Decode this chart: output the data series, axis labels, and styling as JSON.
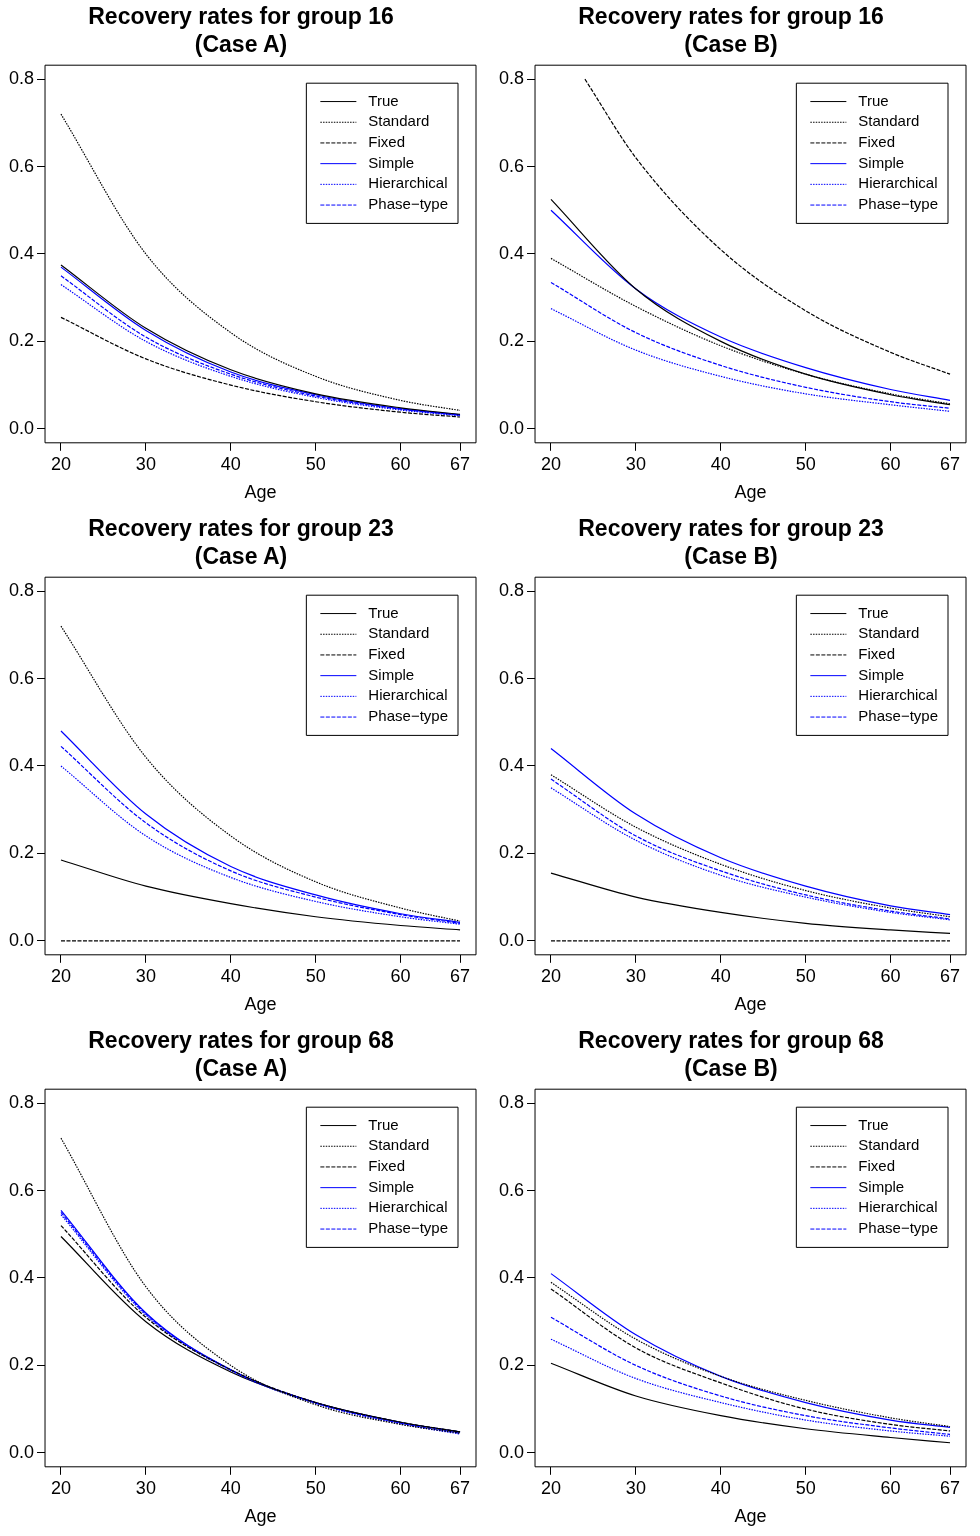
{
  "chart_data": [
    {
      "type": "line",
      "title": "Recovery rates for group 16\n(Case A)",
      "xlabel": "Age",
      "x": [
        20,
        30,
        40,
        50,
        60,
        67
      ],
      "xlim": [
        18.12,
        68.88
      ],
      "xticks": [
        20,
        30,
        40,
        50,
        60,
        67
      ],
      "ylim": [
        -0.032,
        0.832
      ],
      "yticks": [
        {
          "value": 0,
          "label": "0.0"
        },
        {
          "value": 0.2,
          "label": "0.2"
        },
        {
          "value": 0.4,
          "label": "0.4"
        },
        {
          "value": 0.6,
          "label": "0.6"
        },
        {
          "value": 0.8,
          "label": "0.8"
        }
      ],
      "legend": "top right",
      "series": [
        {
          "name": "True",
          "color": "#000000",
          "line_style": "solid",
          "values": [
            0.375,
            0.23,
            0.135,
            0.08,
            0.048,
            0.033
          ]
        },
        {
          "name": "Standard",
          "color": "#000000",
          "line_style": "dotted",
          "values": [
            0.72,
            0.4,
            0.22,
            0.12,
            0.065,
            0.042
          ]
        },
        {
          "name": "Fixed",
          "color": "#000000",
          "line_style": "dashed",
          "values": [
            0.255,
            0.16,
            0.1,
            0.062,
            0.038,
            0.027
          ]
        },
        {
          "name": "Simple",
          "color": "#0000ff",
          "line_style": "solid",
          "values": [
            0.37,
            0.225,
            0.13,
            0.078,
            0.046,
            0.032
          ]
        },
        {
          "name": "Hierarchical",
          "color": "#0000ff",
          "line_style": "dotted",
          "values": [
            0.33,
            0.2,
            0.12,
            0.072,
            0.043,
            0.03
          ]
        },
        {
          "name": "Phase−type",
          "color": "#0000ff",
          "line_style": "dashed",
          "values": [
            0.35,
            0.21,
            0.125,
            0.075,
            0.045,
            0.031
          ]
        }
      ]
    },
    {
      "type": "line",
      "title": "Recovery rates for group 16\n(Case B)",
      "xlabel": "Age",
      "x": [
        20,
        30,
        40,
        50,
        60,
        67
      ],
      "xlim": [
        18.12,
        68.88
      ],
      "xticks": [
        20,
        30,
        40,
        50,
        60,
        67
      ],
      "ylim": [
        -0.032,
        0.832
      ],
      "yticks": [
        {
          "value": 0,
          "label": "0.0"
        },
        {
          "value": 0.2,
          "label": "0.2"
        },
        {
          "value": 0.4,
          "label": "0.4"
        },
        {
          "value": 0.6,
          "label": "0.6"
        },
        {
          "value": 0.8,
          "label": "0.8"
        }
      ],
      "legend": "top right",
      "series": [
        {
          "name": "True",
          "color": "#000000",
          "line_style": "solid",
          "values": [
            0.525,
            0.32,
            0.2,
            0.125,
            0.078,
            0.055
          ]
        },
        {
          "name": "Standard",
          "color": "#000000",
          "line_style": "dotted",
          "values": [
            0.39,
            0.28,
            0.19,
            0.125,
            0.08,
            0.057
          ]
        },
        {
          "name": "Fixed",
          "color": "#000000",
          "line_style": "dashed",
          "x": [
            24,
            30,
            40,
            50,
            60,
            67
          ],
          "values": [
            0.8,
            0.62,
            0.41,
            0.27,
            0.175,
            0.125
          ]
        },
        {
          "name": "Simple",
          "color": "#0000ff",
          "line_style": "solid",
          "values": [
            0.5,
            0.32,
            0.21,
            0.14,
            0.09,
            0.065
          ]
        },
        {
          "name": "Hierarchical",
          "color": "#0000ff",
          "line_style": "dotted",
          "values": [
            0.275,
            0.18,
            0.12,
            0.08,
            0.055,
            0.04
          ]
        },
        {
          "name": "Phase−type",
          "color": "#0000ff",
          "line_style": "dashed",
          "values": [
            0.335,
            0.22,
            0.145,
            0.095,
            0.062,
            0.047
          ]
        }
      ]
    },
    {
      "type": "line",
      "title": "Recovery rates for group 23\n(Case A)",
      "xlabel": "Age",
      "x": [
        20,
        30,
        40,
        50,
        60,
        67
      ],
      "xlim": [
        18.12,
        68.88
      ],
      "xticks": [
        20,
        30,
        40,
        50,
        60,
        67
      ],
      "ylim": [
        -0.032,
        0.832
      ],
      "yticks": [
        {
          "value": 0,
          "label": "0.0"
        },
        {
          "value": 0.2,
          "label": "0.2"
        },
        {
          "value": 0.4,
          "label": "0.4"
        },
        {
          "value": 0.6,
          "label": "0.6"
        },
        {
          "value": 0.8,
          "label": "0.8"
        }
      ],
      "legend": "top right",
      "series": [
        {
          "name": "True",
          "color": "#000000",
          "line_style": "solid",
          "values": [
            0.185,
            0.125,
            0.085,
            0.055,
            0.035,
            0.025
          ]
        },
        {
          "name": "Standard",
          "color": "#000000",
          "line_style": "dotted",
          "values": [
            0.72,
            0.42,
            0.24,
            0.135,
            0.075,
            0.045
          ]
        },
        {
          "name": "Fixed",
          "color": "#000000",
          "line_style": "dashed",
          "values": [
            0,
            0,
            0,
            0,
            0,
            0
          ]
        },
        {
          "name": "Simple",
          "color": "#0000ff",
          "line_style": "solid",
          "values": [
            0.48,
            0.29,
            0.17,
            0.105,
            0.062,
            0.042
          ]
        },
        {
          "name": "Hierarchical",
          "color": "#0000ff",
          "line_style": "dotted",
          "values": [
            0.4,
            0.24,
            0.145,
            0.09,
            0.055,
            0.038
          ]
        },
        {
          "name": "Phase−type",
          "color": "#0000ff",
          "line_style": "dashed",
          "values": [
            0.445,
            0.27,
            0.16,
            0.1,
            0.06,
            0.04
          ]
        }
      ]
    },
    {
      "type": "line",
      "title": "Recovery rates for group 23\n(Case B)",
      "xlabel": "Age",
      "x": [
        20,
        30,
        40,
        50,
        60,
        67
      ],
      "xlim": [
        18.12,
        68.88
      ],
      "xticks": [
        20,
        30,
        40,
        50,
        60,
        67
      ],
      "ylim": [
        -0.032,
        0.832
      ],
      "yticks": [
        {
          "value": 0,
          "label": "0.0"
        },
        {
          "value": 0.2,
          "label": "0.2"
        },
        {
          "value": 0.4,
          "label": "0.4"
        },
        {
          "value": 0.6,
          "label": "0.6"
        },
        {
          "value": 0.8,
          "label": "0.8"
        }
      ],
      "legend": "top right",
      "series": [
        {
          "name": "True",
          "color": "#000000",
          "line_style": "solid",
          "values": [
            0.155,
            0.1,
            0.065,
            0.04,
            0.025,
            0.017
          ]
        },
        {
          "name": "Standard",
          "color": "#000000",
          "line_style": "dotted",
          "values": [
            0.38,
            0.26,
            0.175,
            0.115,
            0.075,
            0.055
          ]
        },
        {
          "name": "Fixed",
          "color": "#000000",
          "line_style": "dashed",
          "values": [
            0,
            0,
            0,
            0,
            0,
            0
          ]
        },
        {
          "name": "Simple",
          "color": "#0000ff",
          "line_style": "solid",
          "values": [
            0.44,
            0.29,
            0.19,
            0.125,
            0.08,
            0.06
          ]
        },
        {
          "name": "Hierarchical",
          "color": "#0000ff",
          "line_style": "dotted",
          "values": [
            0.35,
            0.23,
            0.15,
            0.1,
            0.065,
            0.048
          ]
        },
        {
          "name": "Phase−type",
          "color": "#0000ff",
          "line_style": "dashed",
          "values": [
            0.37,
            0.24,
            0.16,
            0.105,
            0.068,
            0.05
          ]
        }
      ]
    },
    {
      "type": "line",
      "title": "Recovery rates for group 68\n(Case A)",
      "xlabel": "Age",
      "x": [
        20,
        30,
        40,
        50,
        60,
        67
      ],
      "xlim": [
        18.12,
        68.88
      ],
      "xticks": [
        20,
        30,
        40,
        50,
        60,
        67
      ],
      "ylim": [
        -0.032,
        0.832
      ],
      "yticks": [
        {
          "value": 0,
          "label": "0.0"
        },
        {
          "value": 0.2,
          "label": "0.2"
        },
        {
          "value": 0.4,
          "label": "0.4"
        },
        {
          "value": 0.6,
          "label": "0.6"
        },
        {
          "value": 0.8,
          "label": "0.8"
        }
      ],
      "legend": "top right",
      "series": [
        {
          "name": "True",
          "color": "#000000",
          "line_style": "solid",
          "values": [
            0.495,
            0.3,
            0.185,
            0.115,
            0.07,
            0.048
          ]
        },
        {
          "name": "Standard",
          "color": "#000000",
          "line_style": "dotted",
          "values": [
            0.72,
            0.38,
            0.2,
            0.11,
            0.065,
            0.045
          ]
        },
        {
          "name": "Fixed",
          "color": "#000000",
          "line_style": "dashed",
          "values": [
            0.52,
            0.31,
            0.19,
            0.115,
            0.07,
            0.048
          ]
        },
        {
          "name": "Simple",
          "color": "#0000ff",
          "line_style": "solid",
          "values": [
            0.555,
            0.32,
            0.19,
            0.115,
            0.07,
            0.048
          ]
        },
        {
          "name": "Hierarchical",
          "color": "#0000ff",
          "line_style": "dotted",
          "values": [
            0.545,
            0.315,
            0.188,
            0.113,
            0.066,
            0.043
          ]
        },
        {
          "name": "Phase−type",
          "color": "#0000ff",
          "line_style": "dashed",
          "values": [
            0.55,
            0.318,
            0.19,
            0.114,
            0.068,
            0.045
          ]
        }
      ]
    },
    {
      "type": "line",
      "title": "Recovery rates for group 68\n(Case B)",
      "xlabel": "Age",
      "x": [
        20,
        30,
        40,
        50,
        60,
        67
      ],
      "xlim": [
        18.12,
        68.88
      ],
      "xticks": [
        20,
        30,
        40,
        50,
        60,
        67
      ],
      "ylim": [
        -0.032,
        0.832
      ],
      "yticks": [
        {
          "value": 0,
          "label": "0.0"
        },
        {
          "value": 0.2,
          "label": "0.2"
        },
        {
          "value": 0.4,
          "label": "0.4"
        },
        {
          "value": 0.6,
          "label": "0.6"
        },
        {
          "value": 0.8,
          "label": "0.8"
        }
      ],
      "legend": "top right",
      "series": [
        {
          "name": "True",
          "color": "#000000",
          "line_style": "solid",
          "values": [
            0.205,
            0.13,
            0.085,
            0.055,
            0.035,
            0.023
          ]
        },
        {
          "name": "Standard",
          "color": "#000000",
          "line_style": "dotted",
          "values": [
            0.39,
            0.26,
            0.175,
            0.12,
            0.08,
            0.06
          ]
        },
        {
          "name": "Fixed",
          "color": "#000000",
          "line_style": "dashed",
          "values": [
            0.375,
            0.24,
            0.16,
            0.1,
            0.065,
            0.05
          ]
        },
        {
          "name": "Simple",
          "color": "#0000ff",
          "line_style": "solid",
          "values": [
            0.41,
            0.27,
            0.175,
            0.115,
            0.075,
            0.058
          ]
        },
        {
          "name": "Hierarchical",
          "color": "#0000ff",
          "line_style": "dotted",
          "values": [
            0.26,
            0.17,
            0.115,
            0.075,
            0.05,
            0.038
          ]
        },
        {
          "name": "Phase−type",
          "color": "#0000ff",
          "line_style": "dashed",
          "values": [
            0.31,
            0.2,
            0.13,
            0.085,
            0.057,
            0.042
          ]
        }
      ]
    }
  ]
}
